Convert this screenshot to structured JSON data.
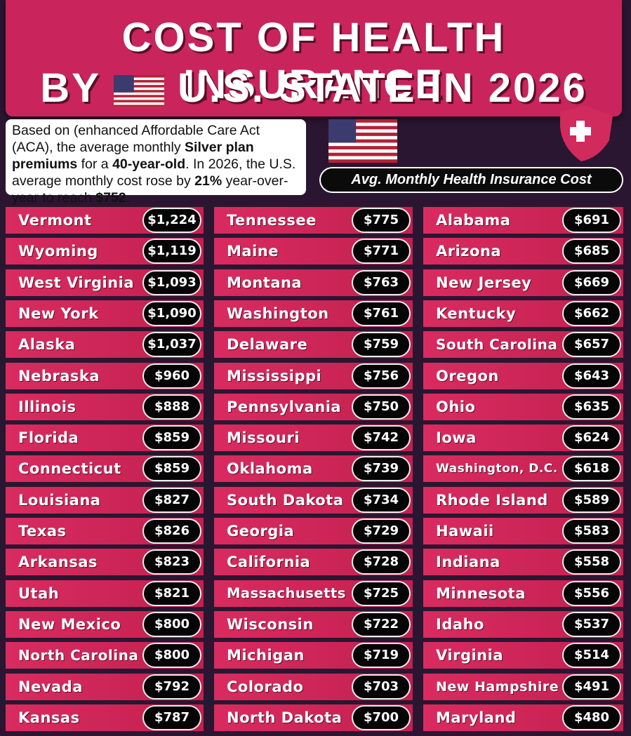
{
  "header": {
    "title_line1": "COST OF HEALTH INSURANCE",
    "title_line2_prefix": "BY",
    "title_line2_suffix": "U.S. STATE IN 2026"
  },
  "description_parts": [
    "Based on (enhanced Affordable Care Act (ACA), the average monthly ",
    "Silver plan premiums",
    " for a ",
    "40-year-old",
    ". In 2026, the U.S. average monthly cost rose by ",
    "21%",
    " year-over-year to reach ",
    "$752",
    "."
  ],
  "legend": "Avg. Monthly Health Insurance Cost",
  "columns": [
    [
      [
        "Vermont",
        "$1,224"
      ],
      [
        "Wyoming",
        "$1,119"
      ],
      [
        "West Virginia",
        "$1,093"
      ],
      [
        "New York",
        "$1,090"
      ],
      [
        "Alaska",
        "$1,037"
      ],
      [
        "Nebraska",
        "$960"
      ],
      [
        "Illinois",
        "$888"
      ],
      [
        "Florida",
        "$859"
      ],
      [
        "Connecticut",
        "$859"
      ],
      [
        "Louisiana",
        "$827"
      ],
      [
        "Texas",
        "$826"
      ],
      [
        "Arkansas",
        "$823"
      ],
      [
        "Utah",
        "$821"
      ],
      [
        "New Mexico",
        "$800"
      ],
      [
        "North Carolina",
        "$800"
      ],
      [
        "Nevada",
        "$792"
      ],
      [
        "Kansas",
        "$787"
      ]
    ],
    [
      [
        "Tennessee",
        "$775"
      ],
      [
        "Maine",
        "$771"
      ],
      [
        "Montana",
        "$763"
      ],
      [
        "Washington",
        "$761"
      ],
      [
        "Delaware",
        "$759"
      ],
      [
        "Mississippi",
        "$756"
      ],
      [
        "Pennsylvania",
        "$750"
      ],
      [
        "Missouri",
        "$742"
      ],
      [
        "Oklahoma",
        "$739"
      ],
      [
        "South Dakota",
        "$734"
      ],
      [
        "Georgia",
        "$729"
      ],
      [
        "California",
        "$728"
      ],
      [
        "Massachusetts",
        "$725"
      ],
      [
        "Wisconsin",
        "$722"
      ],
      [
        "Michigan",
        "$719"
      ],
      [
        "Colorado",
        "$703"
      ],
      [
        "North Dakota",
        "$700"
      ]
    ],
    [
      [
        "Alabama",
        "$691"
      ],
      [
        "Arizona",
        "$685"
      ],
      [
        "New Jersey",
        "$669"
      ],
      [
        "Kentucky",
        "$662"
      ],
      [
        "South Carolina",
        "$657"
      ],
      [
        "Oregon",
        "$643"
      ],
      [
        "Ohio",
        "$635"
      ],
      [
        "Iowa",
        "$624"
      ],
      [
        "Washington, D.C.",
        "$618"
      ],
      [
        "Rhode Island",
        "$589"
      ],
      [
        "Hawaii",
        "$583"
      ],
      [
        "Indiana",
        "$558"
      ],
      [
        "Minnesota",
        "$556"
      ],
      [
        "Idaho",
        "$537"
      ],
      [
        "Virginia",
        "$514"
      ],
      [
        "New Hampshire",
        "$491"
      ],
      [
        "Maryland",
        "$480"
      ]
    ]
  ]
}
